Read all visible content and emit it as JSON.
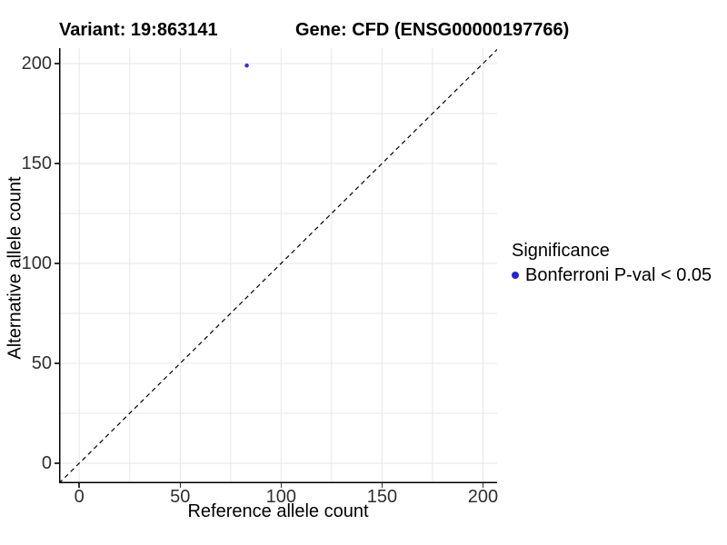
{
  "chart_data": {
    "type": "scatter",
    "titles": {
      "left": "Variant: 19:863141",
      "right": "Gene: CFD (ENSG00000197766)"
    },
    "xlabel": "Reference allele count",
    "ylabel": "Alternative allele count",
    "xlim": [
      -10,
      207
    ],
    "ylim": [
      -10,
      207.7
    ],
    "x_ticks": [
      0,
      50,
      100,
      150,
      200
    ],
    "y_ticks": [
      0,
      50,
      100,
      150,
      200
    ],
    "grid": {
      "show": true,
      "interval": 25,
      "color": "#e7e7e7"
    },
    "points": [
      {
        "x": 83,
        "y": 199,
        "series": "Bonferroni P-val < 0.05",
        "color": "#3232dd",
        "radius": 2.3
      }
    ],
    "identity_line": {
      "style": "dashed",
      "color": "#000000",
      "from": -10,
      "to": 207
    },
    "legend": {
      "title": "Significance",
      "position": "right",
      "entries": [
        {
          "label": "Bonferroni P-val < 0.05",
          "color": "#2222dd",
          "marker": "circle"
        }
      ]
    },
    "colors": {
      "axis_line": "#000000",
      "tick_mark": "#333333",
      "tick_label": "#303030",
      "background": "#ffffff"
    }
  }
}
